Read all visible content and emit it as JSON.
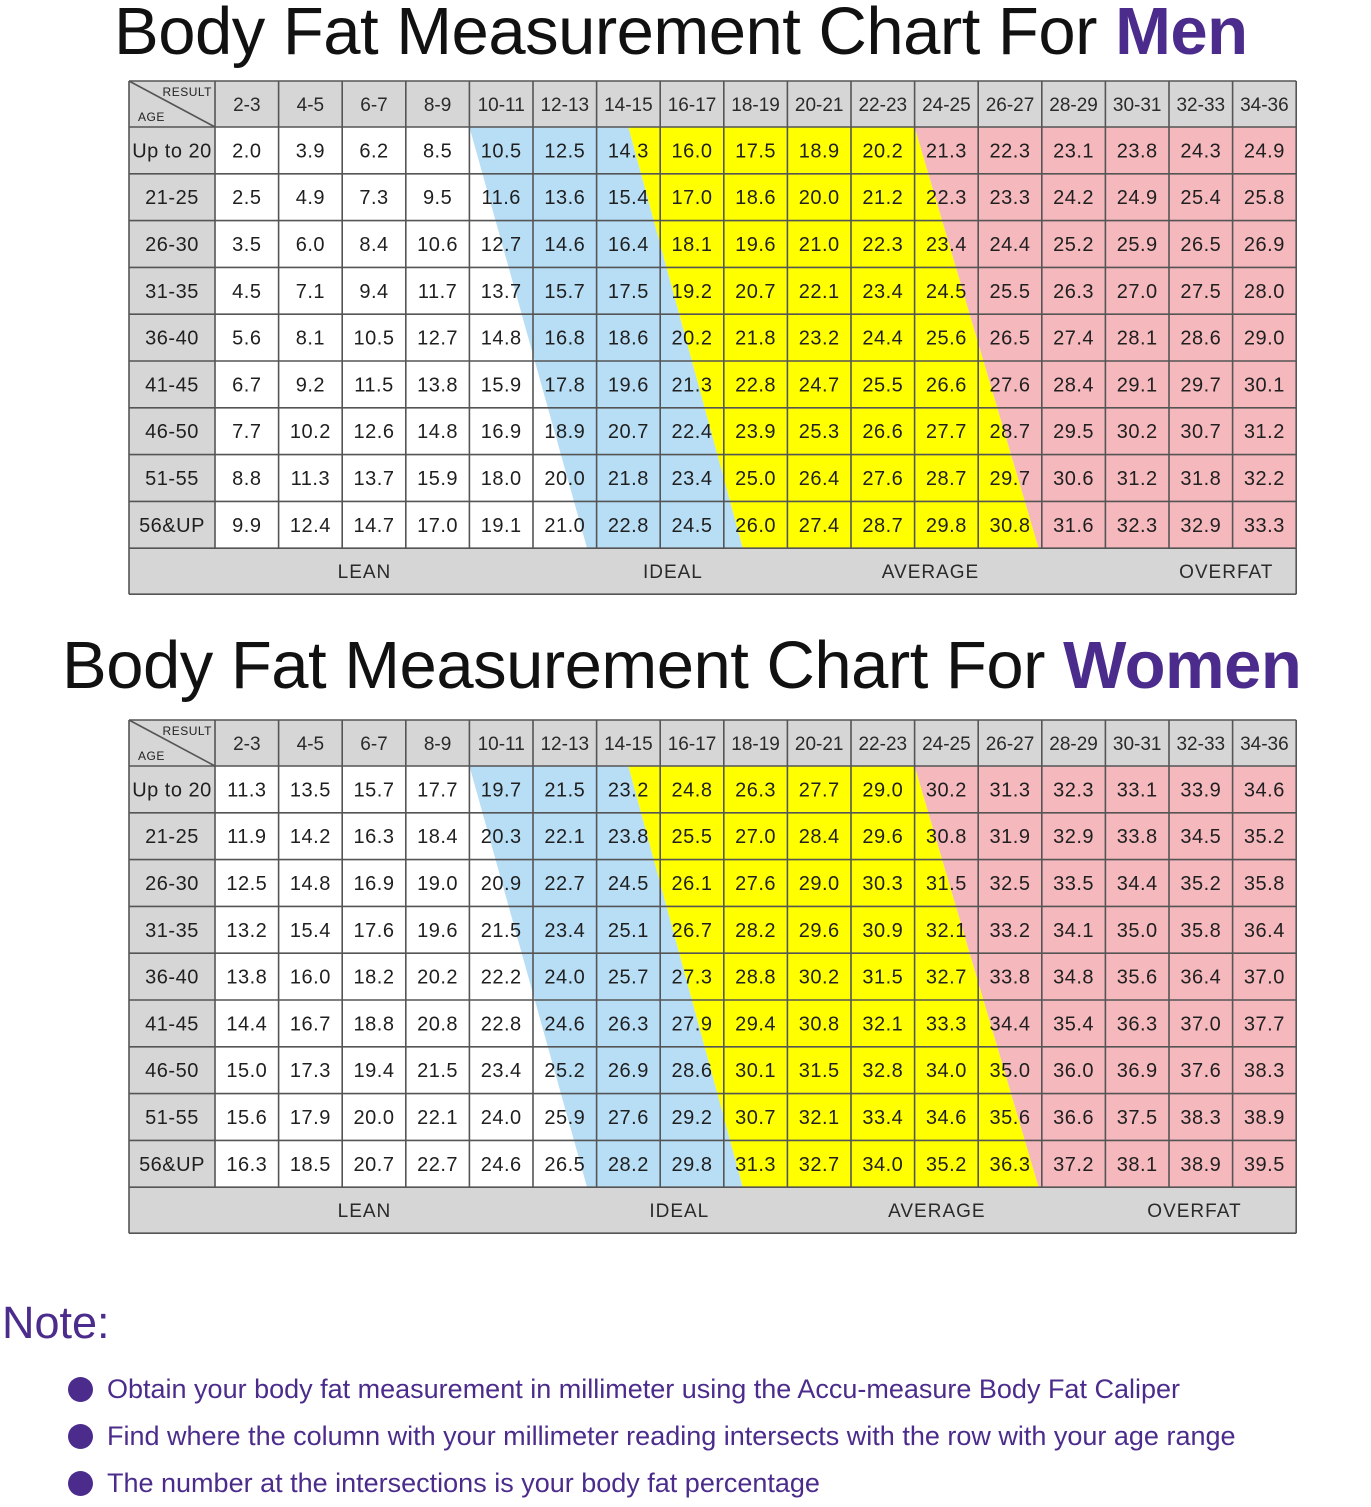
{
  "colors": {
    "accent": "#4b2c8c",
    "lean": "#ffffff",
    "ideal": "#b8def6",
    "average": "#ffff00",
    "overfat": "#f4b8bd",
    "header": "#d6d6d6",
    "grid": "#555555"
  },
  "men_title": {
    "prefix": "Body Fat Measurement Chart For ",
    "accent": "Men"
  },
  "women_title": {
    "prefix": "Body Fat Measurement Chart For ",
    "accent": "Women"
  },
  "chart_data": [
    {
      "type": "table",
      "corner_labels": {
        "top": "RESULT",
        "bottom": "AGE"
      },
      "columns": [
        "2-3",
        "4-5",
        "6-7",
        "8-9",
        "10-11",
        "12-13",
        "14-15",
        "16-17",
        "18-19",
        "20-21",
        "22-23",
        "24-25",
        "26-27",
        "28-29",
        "30-31",
        "32-33",
        "34-36"
      ],
      "rows": [
        {
          "label": "Up to 20",
          "values": [
            "2.0",
            "3.9",
            "6.2",
            "8.5",
            "10.5",
            "12.5",
            "14.3",
            "16.0",
            "17.5",
            "18.9",
            "20.2",
            "21.3",
            "22.3",
            "23.1",
            "23.8",
            "24.3",
            "24.9"
          ]
        },
        {
          "label": "21-25",
          "values": [
            "2.5",
            "4.9",
            "7.3",
            "9.5",
            "11.6",
            "13.6",
            "15.4",
            "17.0",
            "18.6",
            "20.0",
            "21.2",
            "22.3",
            "23.3",
            "24.2",
            "24.9",
            "25.4",
            "25.8"
          ]
        },
        {
          "label": "26-30",
          "values": [
            "3.5",
            "6.0",
            "8.4",
            "10.6",
            "12.7",
            "14.6",
            "16.4",
            "18.1",
            "19.6",
            "21.0",
            "22.3",
            "23.4",
            "24.4",
            "25.2",
            "25.9",
            "26.5",
            "26.9"
          ]
        },
        {
          "label": "31-35",
          "values": [
            "4.5",
            "7.1",
            "9.4",
            "11.7",
            "13.7",
            "15.7",
            "17.5",
            "19.2",
            "20.7",
            "22.1",
            "23.4",
            "24.5",
            "25.5",
            "26.3",
            "27.0",
            "27.5",
            "28.0"
          ]
        },
        {
          "label": "36-40",
          "values": [
            "5.6",
            "8.1",
            "10.5",
            "12.7",
            "14.8",
            "16.8",
            "18.6",
            "20.2",
            "21.8",
            "23.2",
            "24.4",
            "25.6",
            "26.5",
            "27.4",
            "28.1",
            "28.6",
            "29.0"
          ]
        },
        {
          "label": "41-45",
          "values": [
            "6.7",
            "9.2",
            "11.5",
            "13.8",
            "15.9",
            "17.8",
            "19.6",
            "21.3",
            "22.8",
            "24.7",
            "25.5",
            "26.6",
            "27.6",
            "28.4",
            "29.1",
            "29.7",
            "30.1"
          ]
        },
        {
          "label": "46-50",
          "values": [
            "7.7",
            "10.2",
            "12.6",
            "14.8",
            "16.9",
            "18.9",
            "20.7",
            "22.4",
            "23.9",
            "25.3",
            "26.6",
            "27.7",
            "28.7",
            "29.5",
            "30.2",
            "30.7",
            "31.2"
          ]
        },
        {
          "label": "51-55",
          "values": [
            "8.8",
            "11.3",
            "13.7",
            "15.9",
            "18.0",
            "20.0",
            "21.8",
            "23.4",
            "25.0",
            "26.4",
            "27.6",
            "28.7",
            "29.7",
            "30.6",
            "31.2",
            "31.8",
            "32.2"
          ]
        },
        {
          "label": "56&UP",
          "values": [
            "9.9",
            "12.4",
            "14.7",
            "17.0",
            "19.1",
            "21.0",
            "22.8",
            "24.5",
            "26.0",
            "27.4",
            "28.7",
            "29.8",
            "30.8",
            "31.6",
            "32.3",
            "32.9",
            "33.3"
          ]
        }
      ],
      "bands": {
        "ideal_start": [
          4.0,
          4.05,
          4.15,
          4.45,
          4.75,
          5.0,
          5.3,
          5.55,
          5.85
        ],
        "average_start": [
          6.5,
          6.55,
          6.65,
          6.95,
          7.25,
          7.5,
          7.8,
          8.05,
          8.3
        ],
        "overfat_start": [
          11.0,
          11.1,
          11.25,
          11.6,
          11.85,
          12.1,
          12.4,
          12.65,
          12.95
        ]
      },
      "legend": [
        {
          "label": "LEAN",
          "col_pos": 2.35
        },
        {
          "label": "IDEAL",
          "col_pos": 7.2
        },
        {
          "label": "AVERAGE",
          "col_pos": 11.25
        },
        {
          "label": "OVERFAT",
          "col_pos": 15.9
        }
      ]
    },
    {
      "type": "table",
      "corner_labels": {
        "top": "RESULT",
        "bottom": "AGE"
      },
      "columns": [
        "2-3",
        "4-5",
        "6-7",
        "8-9",
        "10-11",
        "12-13",
        "14-15",
        "16-17",
        "18-19",
        "20-21",
        "22-23",
        "24-25",
        "26-27",
        "28-29",
        "30-31",
        "32-33",
        "34-36"
      ],
      "rows": [
        {
          "label": "Up to 20",
          "values": [
            "11.3",
            "13.5",
            "15.7",
            "17.7",
            "19.7",
            "21.5",
            "23.2",
            "24.8",
            "26.3",
            "27.7",
            "29.0",
            "30.2",
            "31.3",
            "32.3",
            "33.1",
            "33.9",
            "34.6"
          ]
        },
        {
          "label": "21-25",
          "values": [
            "11.9",
            "14.2",
            "16.3",
            "18.4",
            "20.3",
            "22.1",
            "23.8",
            "25.5",
            "27.0",
            "28.4",
            "29.6",
            "30.8",
            "31.9",
            "32.9",
            "33.8",
            "34.5",
            "35.2"
          ]
        },
        {
          "label": "26-30",
          "values": [
            "12.5",
            "14.8",
            "16.9",
            "19.0",
            "20.9",
            "22.7",
            "24.5",
            "26.1",
            "27.6",
            "29.0",
            "30.3",
            "31.5",
            "32.5",
            "33.5",
            "34.4",
            "35.2",
            "35.8"
          ]
        },
        {
          "label": "31-35",
          "values": [
            "13.2",
            "15.4",
            "17.6",
            "19.6",
            "21.5",
            "23.4",
            "25.1",
            "26.7",
            "28.2",
            "29.6",
            "30.9",
            "32.1",
            "33.2",
            "34.1",
            "35.0",
            "35.8",
            "36.4"
          ]
        },
        {
          "label": "36-40",
          "values": [
            "13.8",
            "16.0",
            "18.2",
            "20.2",
            "22.2",
            "24.0",
            "25.7",
            "27.3",
            "28.8",
            "30.2",
            "31.5",
            "32.7",
            "33.8",
            "34.8",
            "35.6",
            "36.4",
            "37.0"
          ]
        },
        {
          "label": "41-45",
          "values": [
            "14.4",
            "16.7",
            "18.8",
            "20.8",
            "22.8",
            "24.6",
            "26.3",
            "27.9",
            "29.4",
            "30.8",
            "32.1",
            "33.3",
            "34.4",
            "35.4",
            "36.3",
            "37.0",
            "37.7"
          ]
        },
        {
          "label": "46-50",
          "values": [
            "15.0",
            "17.3",
            "19.4",
            "21.5",
            "23.4",
            "25.2",
            "26.9",
            "28.6",
            "30.1",
            "31.5",
            "32.8",
            "34.0",
            "35.0",
            "36.0",
            "36.9",
            "37.6",
            "38.3"
          ]
        },
        {
          "label": "51-55",
          "values": [
            "15.6",
            "17.9",
            "20.0",
            "22.1",
            "24.0",
            "25.9",
            "27.6",
            "29.2",
            "30.7",
            "32.1",
            "33.4",
            "34.6",
            "35.6",
            "36.6",
            "37.5",
            "38.3",
            "38.9"
          ]
        },
        {
          "label": "56&UP",
          "values": [
            "16.3",
            "18.5",
            "20.7",
            "22.7",
            "24.6",
            "26.5",
            "28.2",
            "29.8",
            "31.3",
            "32.7",
            "34.0",
            "35.2",
            "36.3",
            "37.2",
            "38.1",
            "38.9",
            "39.5"
          ]
        }
      ],
      "bands": {
        "ideal_start": [
          4.0,
          4.05,
          4.15,
          4.45,
          4.75,
          5.0,
          5.3,
          5.55,
          5.85
        ],
        "average_start": [
          6.5,
          6.55,
          6.65,
          6.95,
          7.25,
          7.5,
          7.8,
          8.05,
          8.3
        ],
        "overfat_start": [
          11.0,
          11.1,
          11.25,
          11.6,
          11.85,
          12.1,
          12.4,
          12.65,
          12.95
        ]
      },
      "legend": [
        {
          "label": "LEAN",
          "col_pos": 2.35
        },
        {
          "label": "IDEAL",
          "col_pos": 7.3
        },
        {
          "label": "AVERAGE",
          "col_pos": 11.35
        },
        {
          "label": "OVERFAT",
          "col_pos": 15.4
        }
      ]
    }
  ],
  "note": {
    "title": "Note:",
    "items": [
      "Obtain your body fat measurement in millimeter using the Accu-measure Body Fat Caliper",
      "Find where the column with your millimeter reading intersects with the row with your age range",
      "The number at the intersections is your body fat percentage"
    ]
  }
}
